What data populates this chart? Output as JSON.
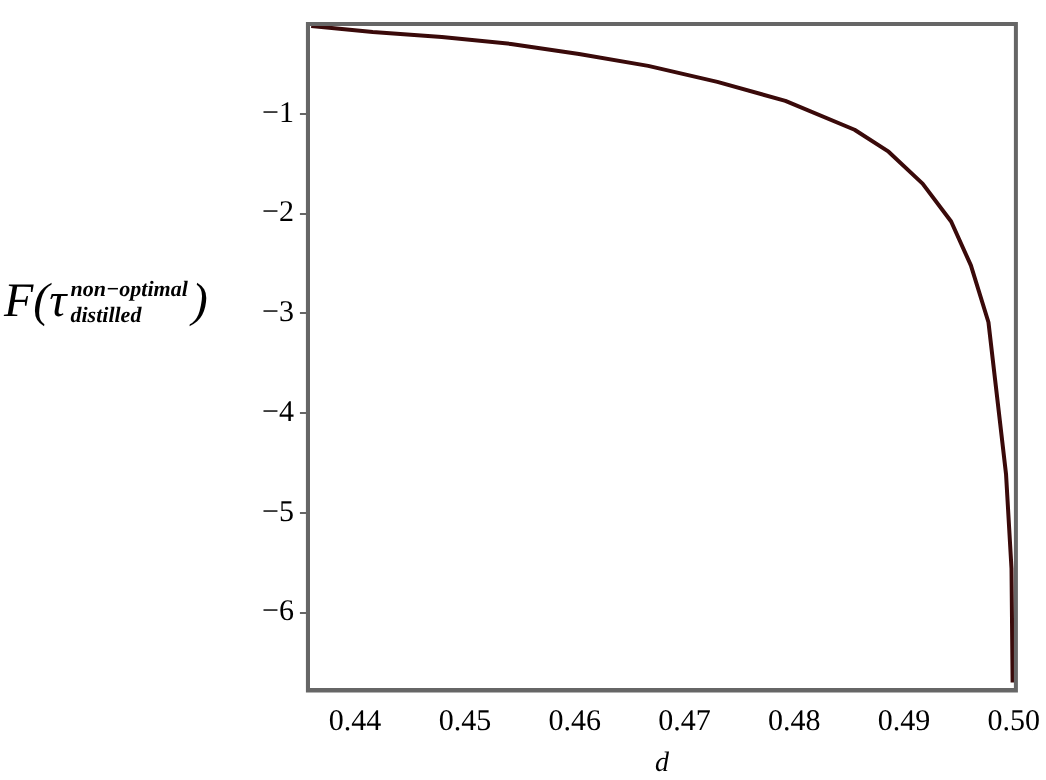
{
  "chart_data": {
    "type": "line",
    "xlabel": "d",
    "ylabel": "F(τ$^{non−optimal}$$_{distilled}$)",
    "x": [
      0.436,
      0.4416,
      0.4479,
      0.4542,
      0.4604,
      0.4667,
      0.473,
      0.4792,
      0.4855,
      0.4886,
      0.4917,
      0.4943,
      0.4961,
      0.4977,
      0.4983,
      0.4993,
      0.4998,
      0.4999
    ],
    "series": [
      {
        "color": "#3a0a0a",
        "values": [
          -0.12,
          -0.18,
          -0.23,
          -0.3,
          -0.4,
          -0.52,
          -0.68,
          -0.87,
          -1.16,
          -1.38,
          -1.7,
          -2.08,
          -2.52,
          -3.09,
          -3.66,
          -4.61,
          -5.56,
          -6.7
        ]
      }
    ],
    "xlim": [
      0.4357,
      0.5002
    ],
    "ylim": [
      -6.78,
      -0.1
    ],
    "xticks": [
      0.44,
      0.45,
      0.46,
      0.47,
      0.48,
      0.49,
      {
        "value": 0.5,
        "label": "0.50"
      }
    ],
    "yticks": [
      {
        "value": -6,
        "label": "−6"
      },
      {
        "value": -5,
        "label": "−5"
      },
      {
        "value": -4,
        "label": "−4"
      },
      {
        "value": -3,
        "label": "−3"
      },
      {
        "value": -2,
        "label": "−2"
      },
      {
        "value": -1,
        "label": "−1"
      }
    ],
    "grid": false,
    "legend": false,
    "marker": "none",
    "line_style": "solid"
  }
}
